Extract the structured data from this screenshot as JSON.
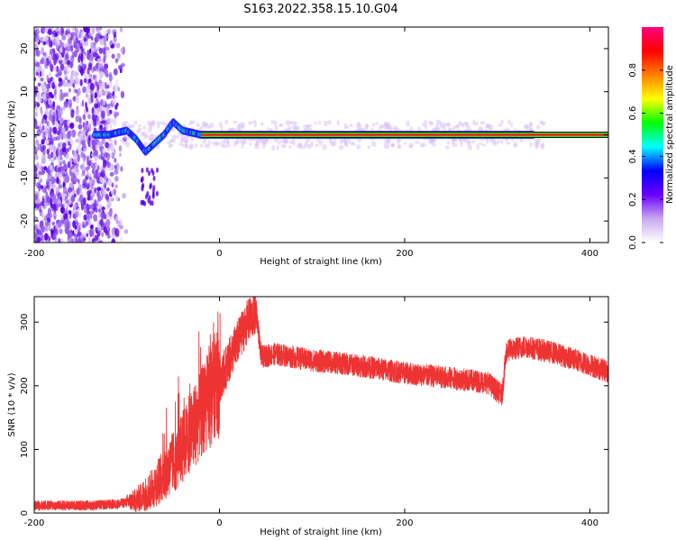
{
  "figure_title": "S163.2022.358.15.10.G04",
  "chart_data": [
    {
      "type": "heatmap",
      "title": "",
      "xlabel": "Height of straight line (km)",
      "ylabel": "Frequency (Hz)",
      "xlim": [
        -200,
        420
      ],
      "ylim": [
        -25,
        25
      ],
      "x_ticks": [
        "-200",
        "0",
        "200",
        "400"
      ],
      "y_ticks": [
        "20",
        "10",
        "0",
        "-10",
        "-20"
      ],
      "colorbar": {
        "label": "Normalized spectral amplitude",
        "range": [
          0.0,
          1.0
        ],
        "ticks": [
          "0.0",
          "0.2",
          "0.4",
          "0.6",
          "0.8"
        ],
        "colormap": [
          "#ffffff",
          "#c8a8f0",
          "#6a00ff",
          "#0000ff",
          "#00ffff",
          "#00ff00",
          "#ffff00",
          "#ff8000",
          "#ff0000",
          "#ff0080"
        ]
      },
      "carrier_line_hz": 0,
      "noise_region_x": [
        -200,
        -100
      ],
      "signal_trace": [
        {
          "x": -135,
          "y": 0
        },
        {
          "x": -120,
          "y": 0
        },
        {
          "x": -100,
          "y": 1
        },
        {
          "x": -90,
          "y": -1
        },
        {
          "x": -80,
          "y": -4
        },
        {
          "x": -70,
          "y": -2
        },
        {
          "x": -60,
          "y": 0
        },
        {
          "x": -50,
          "y": 3
        },
        {
          "x": -40,
          "y": 1
        },
        {
          "x": -20,
          "y": 0
        },
        {
          "x": 0,
          "y": 0
        },
        {
          "x": 100,
          "y": 0
        },
        {
          "x": 200,
          "y": 0
        },
        {
          "x": 300,
          "y": 0
        },
        {
          "x": 340,
          "y": 0
        }
      ]
    },
    {
      "type": "line",
      "title": "",
      "xlabel": "Height of straight line (km)",
      "ylabel": "SNR (10 * v/v)",
      "xlim": [
        -200,
        420
      ],
      "ylim": [
        0,
        340
      ],
      "x_ticks": [
        "-200",
        "0",
        "200",
        "400"
      ],
      "y_ticks": [
        "300",
        "200",
        "100",
        "0"
      ],
      "series": [
        {
          "color": "#ee3333",
          "points": [
            {
              "x": -200,
              "y": 12
            },
            {
              "x": -170,
              "y": 12
            },
            {
              "x": -140,
              "y": 12
            },
            {
              "x": -110,
              "y": 14
            },
            {
              "x": -90,
              "y": 20
            },
            {
              "x": -75,
              "y": 35
            },
            {
              "x": -60,
              "y": 60
            },
            {
              "x": -45,
              "y": 90
            },
            {
              "x": -30,
              "y": 130
            },
            {
              "x": -15,
              "y": 170
            },
            {
              "x": 0,
              "y": 205
            },
            {
              "x": 15,
              "y": 255
            },
            {
              "x": 30,
              "y": 300
            },
            {
              "x": 40,
              "y": 315
            },
            {
              "x": 45,
              "y": 245
            },
            {
              "x": 60,
              "y": 250
            },
            {
              "x": 100,
              "y": 240
            },
            {
              "x": 150,
              "y": 232
            },
            {
              "x": 200,
              "y": 220
            },
            {
              "x": 250,
              "y": 212
            },
            {
              "x": 290,
              "y": 205
            },
            {
              "x": 305,
              "y": 185
            },
            {
              "x": 310,
              "y": 255
            },
            {
              "x": 330,
              "y": 262
            },
            {
              "x": 360,
              "y": 252
            },
            {
              "x": 390,
              "y": 238
            },
            {
              "x": 420,
              "y": 222
            }
          ]
        }
      ]
    }
  ]
}
